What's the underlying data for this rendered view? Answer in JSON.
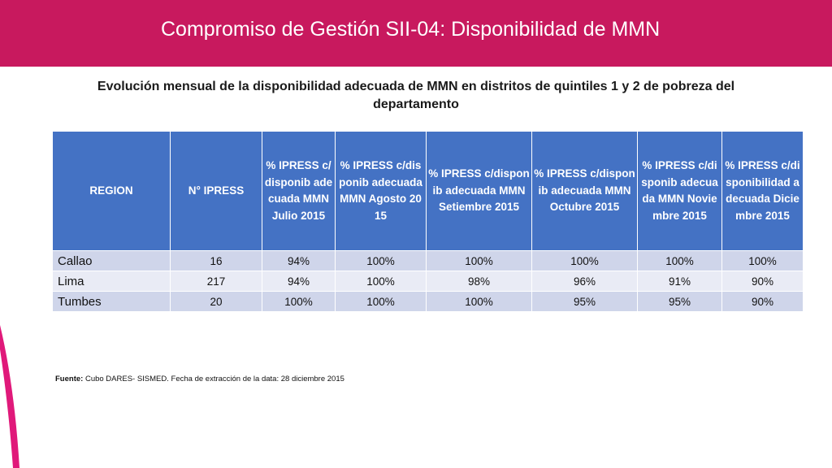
{
  "slide": {
    "title": "Compromiso de Gestión SII-04: Disponibilidad de MMN",
    "subtitle": "Evolución mensual de la disponibilidad adecuada de MMN en distritos de quintiles 1 y 2 de pobreza del departamento"
  },
  "table": {
    "headers": [
      "REGION",
      "N° IPRESS",
      "% IPRESS c/disponib adecuada MMN Julio 2015",
      "% IPRESS c/disponib adecuada MMN Agosto 2015",
      "% IPRESS c/disponib adecuada MMN Setiembre 2015",
      "% IPRESS c/disponib adecuada MMN Octubre 2015",
      "% IPRESS c/disponib adecuada MMN Noviembre 2015",
      "% IPRESS c/disponibilidad adecuada Diciembre 2015"
    ],
    "rows": [
      [
        "Callao",
        "16",
        "94%",
        "100%",
        "100%",
        "100%",
        "100%",
        "100%"
      ],
      [
        "Lima",
        "217",
        "94%",
        "100%",
        "98%",
        "96%",
        "91%",
        "90%"
      ],
      [
        "Tumbes",
        "20",
        "100%",
        "100%",
        "100%",
        "95%",
        "95%",
        "90%"
      ]
    ]
  },
  "footnote": {
    "label": "Fuente:",
    "text": " Cubo DARES- SISMED. Fecha de extracción de la data: 28 diciembre 2015"
  },
  "colors": {
    "header_bar": "#c8195e",
    "table_header": "#4472c4",
    "row_odd": "#cfd5ea",
    "row_even": "#e9ebf5",
    "accent_curve": "#e0197a"
  }
}
